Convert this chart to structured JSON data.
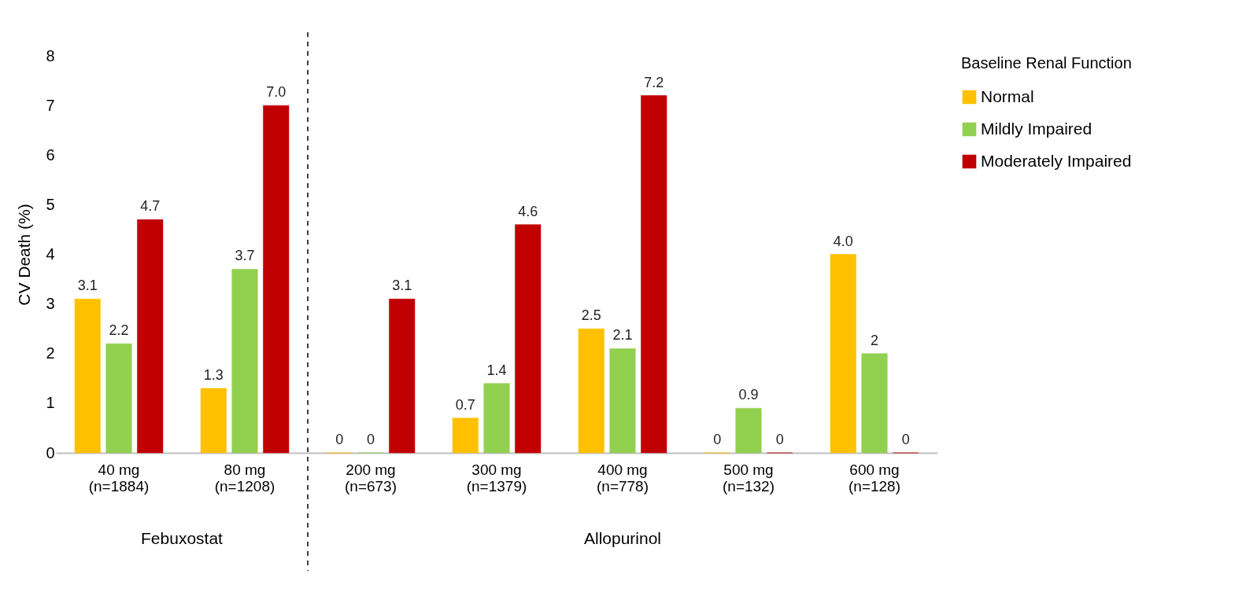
{
  "chart_data": {
    "type": "bar",
    "ylabel": "CV Death (%)",
    "legend_title": "Baseline Renal Function",
    "categories": [
      "40 mg\n(n=1884)",
      "80 mg\n(n=1208)",
      "200 mg\n(n=673)",
      "300 mg\n(n=1379)",
      "400 mg\n(n=778)",
      "500 mg\n(n=132)",
      "600 mg\n(n=128)"
    ],
    "series": [
      {
        "name": "Normal",
        "color": "#ffc000",
        "values": [
          3.1,
          1.3,
          0,
          0.7,
          2.5,
          0,
          4.0
        ],
        "value_labels": [
          "3.1",
          "1.3",
          "0",
          "0.7",
          "2.5",
          "0",
          "4.0"
        ]
      },
      {
        "name": "Mildly Impaired",
        "color": "#92d050",
        "values": [
          2.2,
          3.7,
          0,
          1.4,
          2.1,
          0.9,
          2
        ],
        "value_labels": [
          "2.2",
          "3.7",
          "0",
          "1.4",
          "2.1",
          "0.9",
          "2"
        ]
      },
      {
        "name": "Moderately Impaired",
        "color": "#c00000",
        "values": [
          4.7,
          7.0,
          3.1,
          4.6,
          7.2,
          0,
          0
        ],
        "value_labels": [
          "4.7",
          "7.0",
          "3.1",
          "4.6",
          "7.2",
          "0",
          "0"
        ]
      }
    ],
    "ylim": [
      0,
      8
    ],
    "yticks": [
      0,
      1,
      2,
      3,
      4,
      5,
      6,
      7,
      8
    ],
    "grid": false,
    "legend": "top right",
    "annotations": [
      "Febuxostat",
      "Allopurinol"
    ]
  }
}
